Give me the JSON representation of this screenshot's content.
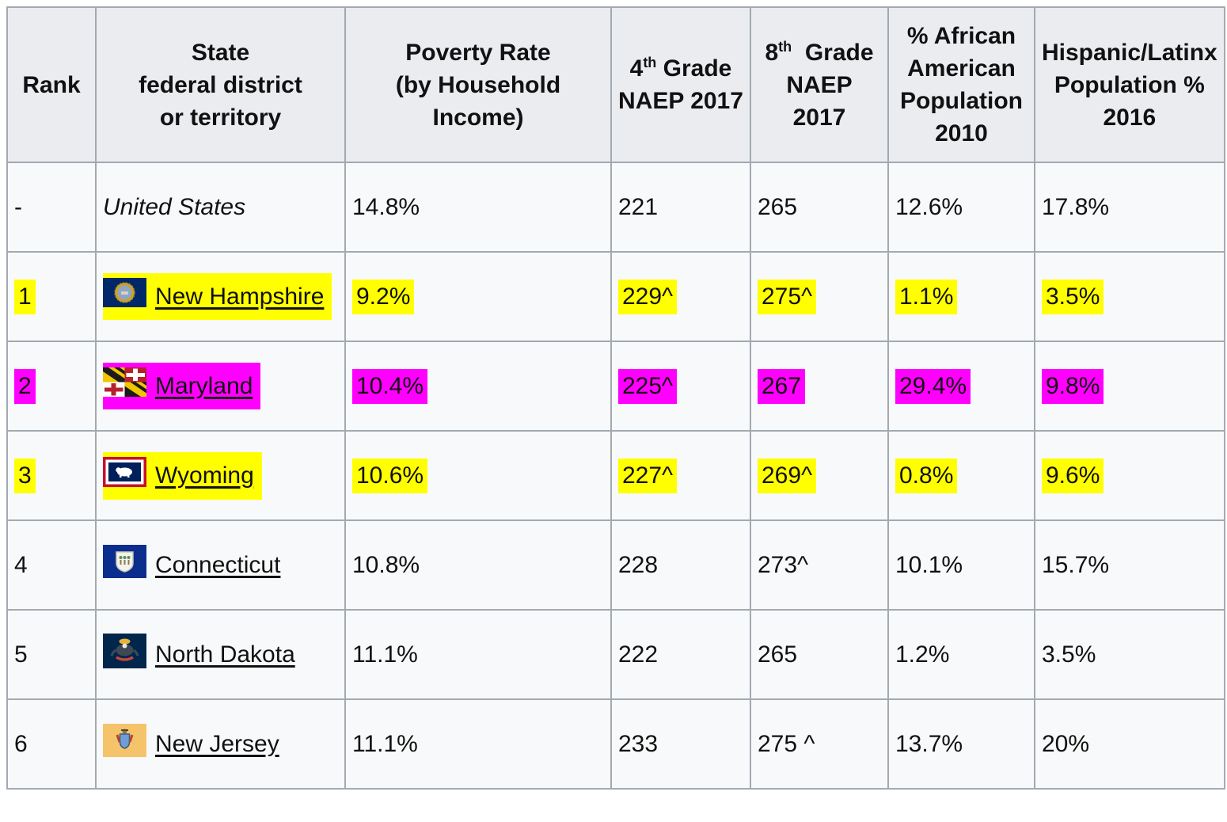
{
  "colors": {
    "highlight_yellow": "#ffff00",
    "highlight_magenta": "#ff00ff",
    "header_bg": "#eaecf0",
    "row_bg": "#f8f9fa",
    "border": "#a2a9b1",
    "link_text": "#111111"
  },
  "table": {
    "header": {
      "cells": [
        {
          "col": "rank",
          "lines": [
            "Rank"
          ]
        },
        {
          "col": "state",
          "lines": [
            "State",
            "federal district",
            "or territory"
          ]
        },
        {
          "col": "poverty",
          "lines": [
            "Poverty Rate",
            "(by Household Income)"
          ]
        },
        {
          "col": "naep4",
          "lines": [
            {
              "pre": "4",
              "sup": "th",
              "post": " Grade"
            },
            "NAEP 2017"
          ]
        },
        {
          "col": "naep8",
          "lines": [
            {
              "pre": "8",
              "sup": "th",
              "post": "  Grade"
            },
            "NAEP 2017"
          ]
        },
        {
          "col": "afram",
          "lines": [
            "% African",
            "American",
            "Population",
            "2010"
          ]
        },
        {
          "col": "hispanic",
          "lines": [
            "Hispanic/Latinx",
            "Population % 2016"
          ]
        }
      ]
    },
    "rows": [
      {
        "name": "united-states",
        "cells": [
          {
            "col": "rank",
            "text": "-"
          },
          {
            "col": "state",
            "text": "United States",
            "italic": true,
            "link": false,
            "flag": null
          },
          {
            "col": "poverty",
            "text": "14.8%"
          },
          {
            "col": "naep4",
            "text": "221"
          },
          {
            "col": "naep8",
            "text": "265"
          },
          {
            "col": "afram",
            "text": "12.6%"
          },
          {
            "col": "hispanic",
            "text": "17.8%"
          }
        ]
      },
      {
        "name": "new-hampshire",
        "cells": [
          {
            "col": "rank",
            "text": "1",
            "highlight": "yellow"
          },
          {
            "col": "state",
            "text": "New Hampshire",
            "link": true,
            "flag": "new-hampshire",
            "highlight": "yellow"
          },
          {
            "col": "poverty",
            "text": "9.2%",
            "highlight": "yellow"
          },
          {
            "col": "naep4",
            "text": "229^",
            "highlight": "yellow"
          },
          {
            "col": "naep8",
            "text": "275^",
            "highlight": "yellow"
          },
          {
            "col": "afram",
            "text": "1.1%",
            "highlight": "yellow"
          },
          {
            "col": "hispanic",
            "text": "3.5%",
            "highlight": "yellow"
          }
        ]
      },
      {
        "name": "maryland",
        "cells": [
          {
            "col": "rank",
            "text": "2",
            "highlight": "magenta"
          },
          {
            "col": "state",
            "text": "Maryland",
            "link": true,
            "flag": "maryland",
            "highlight": "magenta"
          },
          {
            "col": "poverty",
            "text": "10.4%",
            "highlight": "magenta"
          },
          {
            "col": "naep4",
            "text": "225^",
            "highlight": "magenta"
          },
          {
            "col": "naep8",
            "text": "267",
            "highlight": "magenta"
          },
          {
            "col": "afram",
            "text": "29.4%",
            "highlight": "magenta"
          },
          {
            "col": "hispanic",
            "text": "9.8%",
            "highlight": "magenta"
          }
        ]
      },
      {
        "name": "wyoming",
        "cells": [
          {
            "col": "rank",
            "text": "3",
            "highlight": "yellow"
          },
          {
            "col": "state",
            "text": "Wyoming",
            "link": true,
            "flag": "wyoming",
            "highlight": "yellow"
          },
          {
            "col": "poverty",
            "text": "10.6%",
            "highlight": "yellow"
          },
          {
            "col": "naep4",
            "text": "227^",
            "highlight": "yellow"
          },
          {
            "col": "naep8",
            "text": "269^",
            "highlight": "yellow"
          },
          {
            "col": "afram",
            "text": "0.8%",
            "highlight": "yellow"
          },
          {
            "col": "hispanic",
            "text": "9.6%",
            "highlight": "yellow"
          }
        ]
      },
      {
        "name": "connecticut",
        "cells": [
          {
            "col": "rank",
            "text": "4"
          },
          {
            "col": "state",
            "text": "Connecticut",
            "link": true,
            "flag": "connecticut"
          },
          {
            "col": "poverty",
            "text": "10.8%"
          },
          {
            "col": "naep4",
            "text": "228"
          },
          {
            "col": "naep8",
            "text": "273^"
          },
          {
            "col": "afram",
            "text": "10.1%"
          },
          {
            "col": "hispanic",
            "text": "15.7%"
          }
        ]
      },
      {
        "name": "north-dakota",
        "cells": [
          {
            "col": "rank",
            "text": "5"
          },
          {
            "col": "state",
            "text": "North Dakota",
            "link": true,
            "flag": "north-dakota"
          },
          {
            "col": "poverty",
            "text": "11.1%"
          },
          {
            "col": "naep4",
            "text": "222"
          },
          {
            "col": "naep8",
            "text": "265"
          },
          {
            "col": "afram",
            "text": "1.2%"
          },
          {
            "col": "hispanic",
            "text": "3.5%"
          }
        ]
      },
      {
        "name": "new-jersey",
        "cells": [
          {
            "col": "rank",
            "text": "6"
          },
          {
            "col": "state",
            "text": "New Jersey",
            "link": true,
            "flag": "new-jersey"
          },
          {
            "col": "poverty",
            "text": "11.1%"
          },
          {
            "col": "naep4",
            "text": "233"
          },
          {
            "col": "naep8",
            "text": "275 ^"
          },
          {
            "col": "afram",
            "text": "13.7%"
          },
          {
            "col": "hispanic",
            "text": "20%"
          }
        ]
      }
    ]
  }
}
